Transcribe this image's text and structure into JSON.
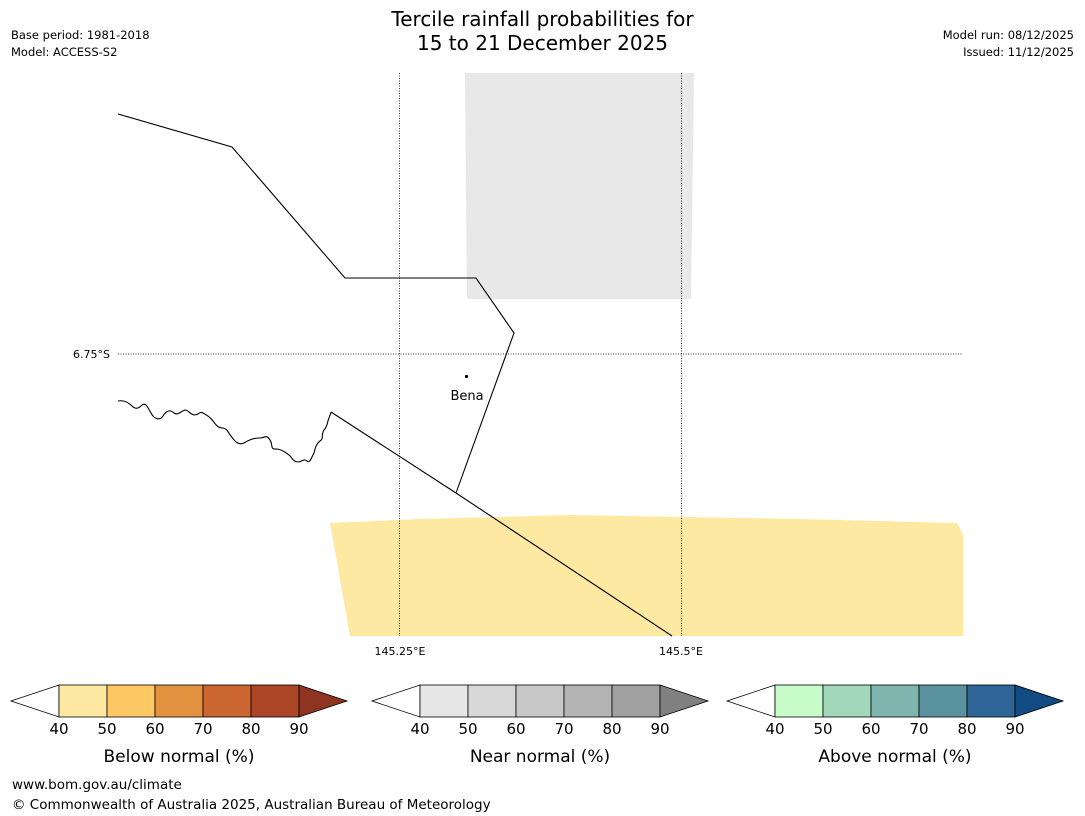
{
  "header": {
    "base_period": "Base period: 1981-2018",
    "model": "Model: ACCESS-S2",
    "model_run": "Model run: 08/12/2025",
    "issued": "Issued: 11/12/2025",
    "title_line1": "Tercile rainfall probabilities for",
    "title_line2": "15 to 21 December 2025"
  },
  "map": {
    "latitude_labels": [
      "6.75°S"
    ],
    "longitude_labels": [
      "145.25°E",
      "145.5°E"
    ],
    "places": [
      {
        "name": "Bena"
      }
    ],
    "region_colors": {
      "near_normal_zone": "#e8e8e8",
      "below_normal_zone": "#fee9a3"
    }
  },
  "colorbars": [
    {
      "label": "Below normal (%)",
      "ticks": [
        "40",
        "50",
        "60",
        "70",
        "80",
        "90"
      ],
      "colors": [
        "#ffffff",
        "#fee9a3",
        "#fec964",
        "#e2923e",
        "#cb6531",
        "#ad4626",
        "#8f3420"
      ]
    },
    {
      "label": "Near normal (%)",
      "ticks": [
        "40",
        "50",
        "60",
        "70",
        "80",
        "90"
      ],
      "colors": [
        "#ffffff",
        "#e6e6e6",
        "#d8d8d8",
        "#c8c8c8",
        "#b4b4b4",
        "#a0a0a0",
        "#808080"
      ]
    },
    {
      "label": "Above normal (%)",
      "ticks": [
        "40",
        "50",
        "60",
        "70",
        "80",
        "90"
      ],
      "colors": [
        "#ffffff",
        "#c7fcc9",
        "#a2d8b9",
        "#7fb5ae",
        "#5a92a0",
        "#2f6496",
        "#124a82"
      ]
    }
  ],
  "footer": {
    "website": "www.bom.gov.au/climate",
    "copyright": "© Commonwealth of Australia 2025, Australian Bureau of Meteorology"
  }
}
